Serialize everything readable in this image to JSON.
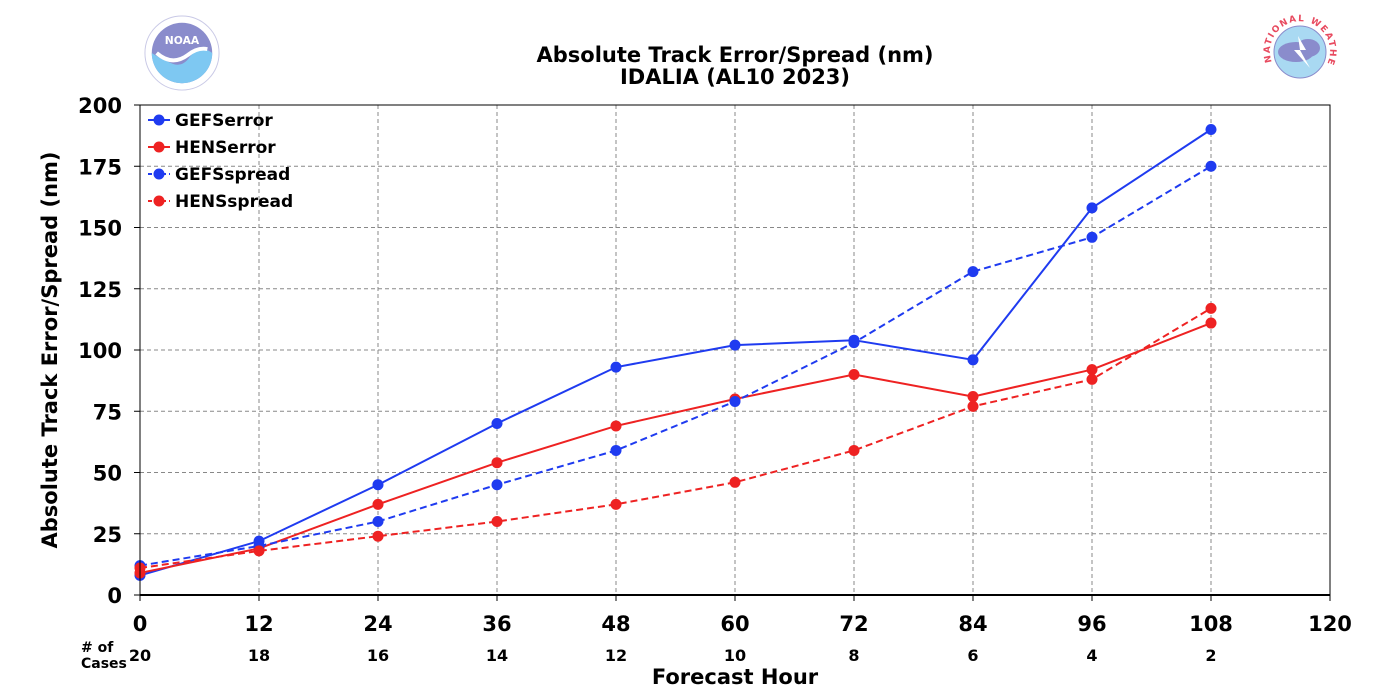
{
  "logos": {
    "left": "NOAA",
    "left_ring_text": "NATIONAL OCEANIC AND ATMOSPHERIC ADMINISTRATION · U.S. DEPARTMENT OF COMMERCE",
    "right_ring_text": "NATIONAL WEATHER SERVICE"
  },
  "chart_data": {
    "type": "line",
    "title": "Absolute Track Error/Spread (nm)",
    "subtitle": "IDALIA (AL10 2023)",
    "xlabel": "Forecast Hour",
    "ylabel": "Absolute Track Error/Spread (nm)",
    "xlim": [
      0,
      120
    ],
    "ylim": [
      0,
      200
    ],
    "x_ticks": [
      0,
      12,
      24,
      36,
      48,
      60,
      72,
      84,
      96,
      108,
      120
    ],
    "y_ticks": [
      0,
      25,
      50,
      75,
      100,
      125,
      150,
      175,
      200
    ],
    "grid": true,
    "legend_position": "top-left",
    "cases_label": "# of\nCases",
    "cases_label_lines": [
      "# of",
      "Cases"
    ],
    "cases": [
      {
        "x": 0,
        "n": 20
      },
      {
        "x": 12,
        "n": 18
      },
      {
        "x": 24,
        "n": 16
      },
      {
        "x": 36,
        "n": 14
      },
      {
        "x": 48,
        "n": 12
      },
      {
        "x": 60,
        "n": 10
      },
      {
        "x": 72,
        "n": 8
      },
      {
        "x": 84,
        "n": 6
      },
      {
        "x": 96,
        "n": 4
      },
      {
        "x": 108,
        "n": 2
      }
    ],
    "x": [
      0,
      12,
      24,
      36,
      48,
      60,
      72,
      84,
      96,
      108
    ],
    "series": [
      {
        "name": "GEFSerror",
        "color": "#1f3bf0",
        "dashed": false,
        "values": [
          8,
          22,
          45,
          70,
          93,
          102,
          104,
          96,
          158,
          190
        ]
      },
      {
        "name": "HENSerror",
        "color": "#ee2222",
        "dashed": false,
        "values": [
          9,
          19,
          37,
          54,
          69,
          80,
          90,
          81,
          92,
          111
        ]
      },
      {
        "name": "GEFSspread",
        "color": "#1f3bf0",
        "dashed": true,
        "values": [
          12,
          20,
          30,
          45,
          59,
          79,
          103,
          132,
          146,
          175
        ]
      },
      {
        "name": "HENSspread",
        "color": "#ee2222",
        "dashed": true,
        "values": [
          11,
          18,
          24,
          30,
          37,
          46,
          59,
          77,
          88,
          117
        ]
      }
    ]
  }
}
